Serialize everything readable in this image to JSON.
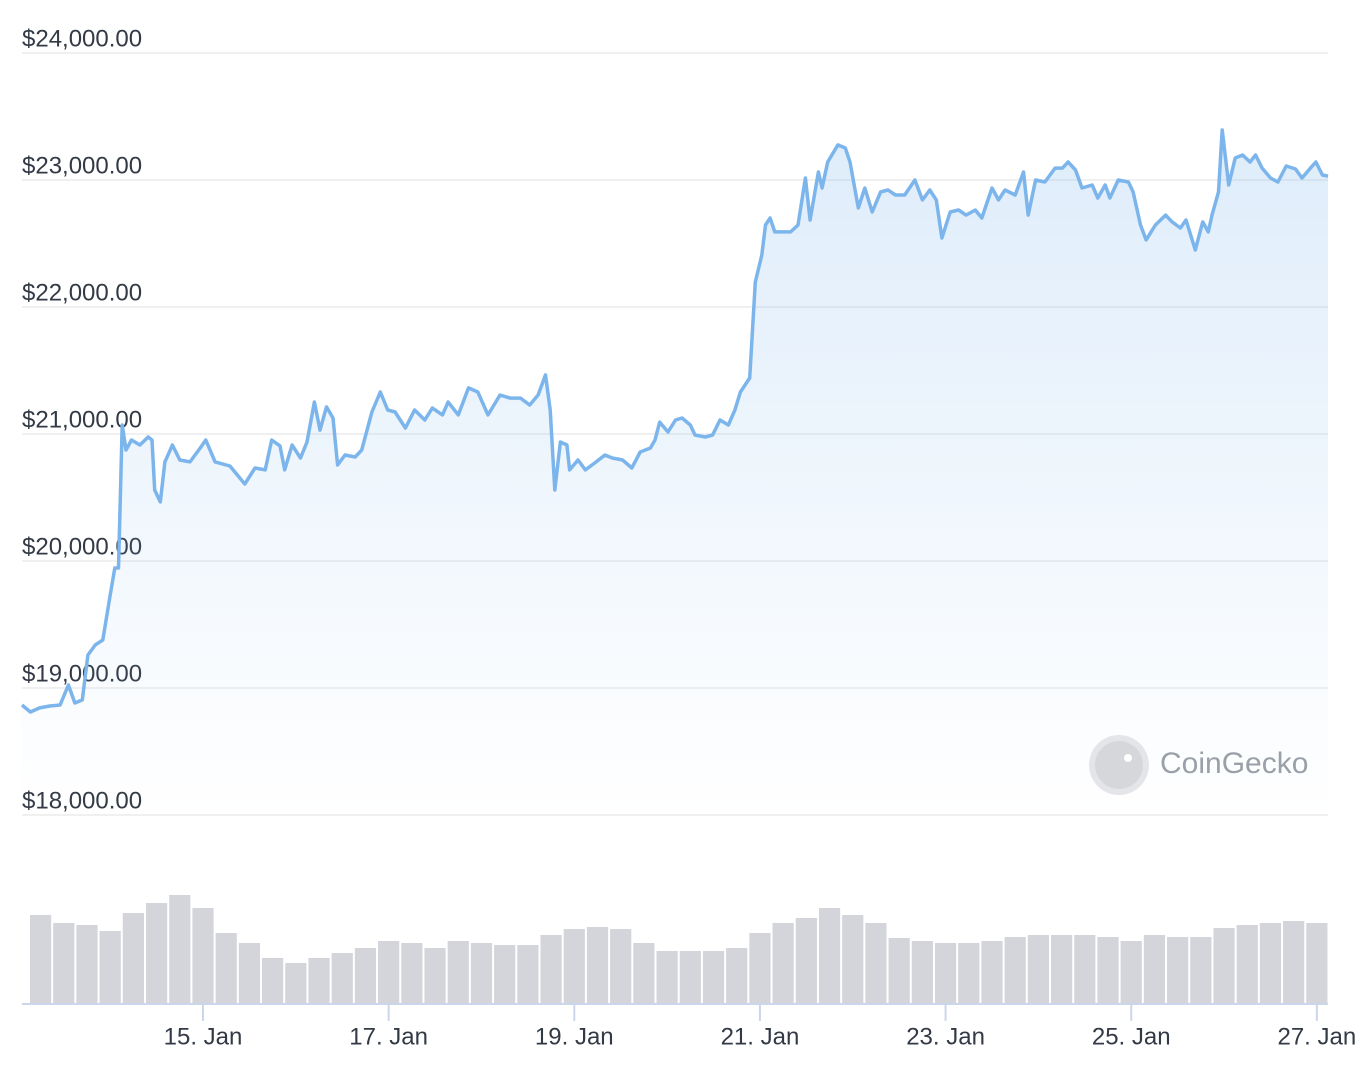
{
  "chart_data": [
    {
      "type": "line",
      "color": "#7cb5ec",
      "watermark": "CoinGecko",
      "xlim": [
        13.05,
        27.12
      ],
      "ylim": [
        18000,
        24000
      ],
      "yticks": [
        {
          "value": 18000,
          "label": "$18,000.00"
        },
        {
          "value": 19000,
          "label": "$19,000.00"
        },
        {
          "value": 20000,
          "label": "$20,000.00"
        },
        {
          "value": 21000,
          "label": "$21,000.00"
        },
        {
          "value": 22000,
          "label": "$22,000.00"
        },
        {
          "value": 23000,
          "label": "$23,000.00"
        },
        {
          "value": 24000,
          "label": "$24,000.00"
        }
      ],
      "grid": true,
      "series": [
        {
          "color": "#7cb5ec",
          "x": [
            13.05,
            13.14,
            13.24,
            13.35,
            13.46,
            13.55,
            13.62,
            13.7,
            13.76,
            13.84,
            13.92,
            14.0,
            14.05,
            14.09,
            14.13,
            14.17,
            14.23,
            14.32,
            14.41,
            14.45,
            14.48,
            14.54,
            14.59,
            14.67,
            14.75,
            14.86,
            14.97,
            15.03,
            15.13,
            15.29,
            15.45,
            15.56,
            15.67,
            15.74,
            15.83,
            15.88,
            15.96,
            16.05,
            16.12,
            16.2,
            16.26,
            16.33,
            16.4,
            16.45,
            16.53,
            16.64,
            16.71,
            16.82,
            16.91,
            16.99,
            17.07,
            17.18,
            17.28,
            17.39,
            17.47,
            17.58,
            17.64,
            17.75,
            17.86,
            17.96,
            18.07,
            18.2,
            18.31,
            18.42,
            18.52,
            18.61,
            18.69,
            18.74,
            18.79,
            18.85,
            18.92,
            18.95,
            19.04,
            19.12,
            19.22,
            19.33,
            19.41,
            19.52,
            19.62,
            19.71,
            19.82,
            19.87,
            19.92,
            20.01,
            20.09,
            20.16,
            20.25,
            20.3,
            20.41,
            20.49,
            20.57,
            20.66,
            20.73,
            20.79,
            20.89,
            20.95,
            21.02,
            21.06,
            21.11,
            21.16,
            21.33,
            21.41,
            21.49,
            21.54,
            21.63,
            21.67,
            21.73,
            21.84,
            21.92,
            21.97,
            22.06,
            22.13,
            22.21,
            22.3,
            22.38,
            22.46,
            22.56,
            22.67,
            22.75,
            22.83,
            22.9,
            22.96,
            23.05,
            23.14,
            23.22,
            23.32,
            23.39,
            23.5,
            23.57,
            23.64,
            23.75,
            23.84,
            23.89,
            23.97,
            24.07,
            24.18,
            24.26,
            24.32,
            24.4,
            24.47,
            24.58,
            24.64,
            24.72,
            24.77,
            24.86,
            24.97,
            25.02,
            25.1,
            25.16,
            25.26,
            25.37,
            25.44,
            25.53,
            25.59,
            25.69,
            25.77,
            25.83,
            25.87,
            25.94,
            25.98,
            26.05,
            26.12,
            26.2,
            26.28,
            26.34,
            26.41,
            26.5,
            26.58,
            26.67,
            26.77,
            26.84,
            26.93,
            26.99,
            27.06,
            27.12
          ],
          "values": [
            18866,
            18811,
            18843,
            18858,
            18866,
            19024,
            18882,
            18906,
            19260,
            19339,
            19378,
            19732,
            19945,
            19945,
            21071,
            20874,
            20953,
            20913,
            20976,
            20953,
            20559,
            20465,
            20780,
            20913,
            20795,
            20780,
            20890,
            20953,
            20780,
            20748,
            20606,
            20732,
            20717,
            20953,
            20906,
            20717,
            20913,
            20811,
            20937,
            21252,
            21031,
            21213,
            21126,
            20756,
            20835,
            20819,
            20874,
            21173,
            21331,
            21189,
            21173,
            21047,
            21189,
            21110,
            21205,
            21150,
            21252,
            21150,
            21363,
            21331,
            21150,
            21307,
            21283,
            21283,
            21228,
            21307,
            21465,
            21189,
            20559,
            20937,
            20913,
            20717,
            20795,
            20717,
            20772,
            20835,
            20811,
            20795,
            20732,
            20858,
            20890,
            20953,
            21094,
            21016,
            21110,
            21126,
            21071,
            20992,
            20976,
            20992,
            21110,
            21071,
            21189,
            21331,
            21441,
            22197,
            22409,
            22646,
            22701,
            22591,
            22591,
            22646,
            23016,
            22685,
            23063,
            22937,
            23142,
            23276,
            23252,
            23142,
            22780,
            22937,
            22748,
            22906,
            22921,
            22882,
            22882,
            23000,
            22843,
            22921,
            22843,
            22543,
            22748,
            22764,
            22724,
            22764,
            22701,
            22937,
            22843,
            22921,
            22882,
            23063,
            22724,
            23000,
            22984,
            23094,
            23094,
            23142,
            23079,
            22937,
            22961,
            22858,
            22961,
            22858,
            23000,
            22984,
            22906,
            22646,
            22528,
            22646,
            22724,
            22670,
            22622,
            22685,
            22449,
            22670,
            22591,
            22724,
            22906,
            23394,
            22961,
            23173,
            23197,
            23142,
            23197,
            23094,
            23016,
            22984,
            23110,
            23087,
            23016,
            23094,
            23142,
            23039,
            23031
          ]
        }
      ]
    },
    {
      "type": "bar",
      "color": "#d4d5da",
      "xlim": [
        13.05,
        27.12
      ],
      "xticks": [
        {
          "value": 15,
          "label": "15. Jan"
        },
        {
          "value": 17,
          "label": "17. Jan"
        },
        {
          "value": 19,
          "label": "19. Jan"
        },
        {
          "value": 21,
          "label": "21. Jan"
        },
        {
          "value": 23,
          "label": "23. Jan"
        },
        {
          "value": 25,
          "label": "25. Jan"
        },
        {
          "value": 27,
          "label": "27. Jan"
        }
      ],
      "x": [
        13.25,
        13.5,
        13.75,
        14.0,
        14.25,
        14.5,
        14.75,
        15.0,
        15.25,
        15.5,
        15.75,
        16.0,
        16.25,
        16.5,
        16.75,
        17.0,
        17.25,
        17.5,
        17.75,
        18.0,
        18.25,
        18.5,
        18.75,
        19.0,
        19.25,
        19.5,
        19.75,
        20.0,
        20.25,
        20.5,
        20.75,
        21.0,
        21.25,
        21.5,
        21.75,
        22.0,
        22.25,
        22.5,
        22.75,
        23.0,
        23.25,
        23.5,
        23.75,
        24.0,
        24.25,
        24.5,
        24.75,
        25.0,
        25.25,
        25.5,
        25.75,
        26.0,
        26.25,
        26.5,
        26.75,
        27.0
      ],
      "values": [
        88,
        80,
        78,
        72,
        90,
        100,
        108,
        95,
        70,
        60,
        45,
        40,
        45,
        50,
        55,
        62,
        60,
        55,
        62,
        60,
        58,
        58,
        68,
        74,
        76,
        74,
        60,
        52,
        52,
        52,
        55,
        70,
        80,
        85,
        95,
        88,
        80,
        65,
        62,
        60,
        60,
        62,
        66,
        68,
        68,
        68,
        66,
        62,
        68,
        66,
        66,
        75,
        78,
        80,
        82,
        80
      ]
    }
  ]
}
